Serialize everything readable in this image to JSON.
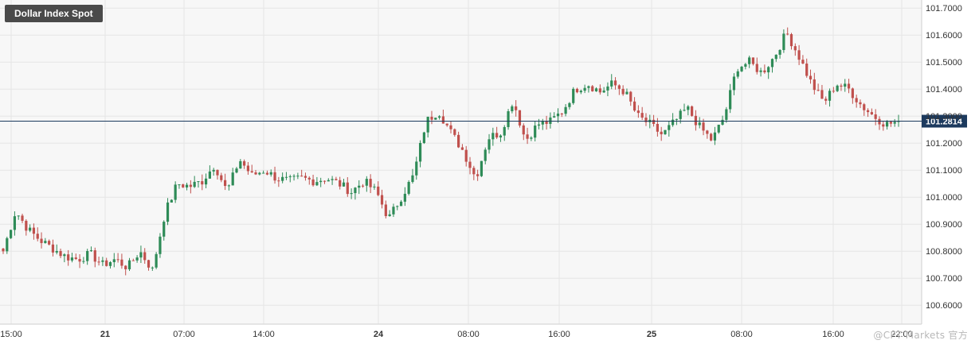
{
  "title": "Dollar Index Spot",
  "watermark": "@CPT Markets 官方",
  "colors": {
    "up": "#2e8b57",
    "down": "#c0504d",
    "price_line": "#1c3a5e",
    "grid": "#e6e6e6",
    "plot_bg": "#f7f7f7"
  },
  "chart_data": {
    "type": "candlestick",
    "title": "Dollar Index Spot",
    "grid": true,
    "current_price": 101.2814,
    "current_price_label": "101.2814",
    "ylim": [
      100.53,
      101.73
    ],
    "y_ticks": [
      101.7,
      101.6,
      101.5,
      101.4,
      101.3,
      101.2,
      101.1,
      101.0,
      100.9,
      100.8,
      100.7,
      100.6
    ],
    "y_tick_labels": [
      "101.7000",
      "101.6000",
      "101.5000",
      "101.4000",
      "101.3000",
      "101.2000",
      "101.1000",
      "101.0000",
      "100.9000",
      "100.8000",
      "100.7000",
      "100.6000"
    ],
    "x_ticks": [
      "15:00",
      "21",
      "07:00",
      "14:00",
      "24",
      "08:00",
      "16:00",
      "25",
      "08:00",
      "16:00",
      "22:00"
    ],
    "x_tick_bold": [
      false,
      true,
      false,
      false,
      true,
      false,
      false,
      true,
      false,
      false,
      false
    ],
    "close_path": [
      100.8,
      100.95,
      100.88,
      100.84,
      100.81,
      100.78,
      100.77,
      100.79,
      100.75,
      100.77,
      100.74,
      100.8,
      100.73,
      100.94,
      101.05,
      101.04,
      101.06,
      101.12,
      101.02,
      101.14,
      101.08,
      101.1,
      101.07,
      101.06,
      101.07,
      101.06,
      101.07,
      101.05,
      101.02,
      101.06,
      101.02,
      100.92,
      101.0,
      101.08,
      101.28,
      101.32,
      101.24,
      101.17,
      101.07,
      101.22,
      101.24,
      101.36,
      101.21,
      101.27,
      101.28,
      101.32,
      101.4,
      101.42,
      101.39,
      101.42,
      101.39,
      101.3,
      101.27,
      101.23,
      101.28,
      101.33,
      101.26,
      101.21,
      101.3,
      101.48,
      101.5,
      101.46,
      101.52,
      101.61,
      101.52,
      101.42,
      101.35,
      101.42,
      101.4,
      101.34,
      101.3,
      101.27,
      101.28
    ],
    "n_candles": 235,
    "seed": 7
  }
}
